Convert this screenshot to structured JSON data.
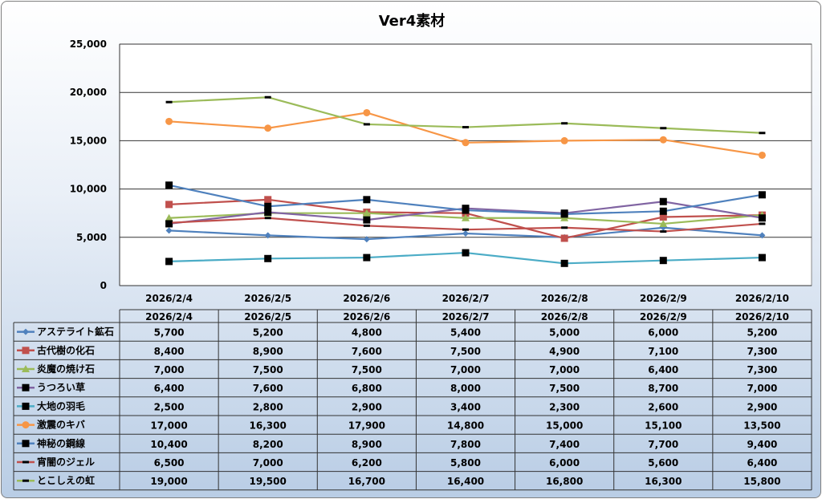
{
  "chart_data": {
    "type": "line",
    "title": "Ver4素材",
    "xlabel": "",
    "ylabel": "",
    "ylim": [
      0,
      25000
    ],
    "yticks": [
      "0",
      "5,000",
      "10,000",
      "15,000",
      "20,000",
      "25,000"
    ],
    "ytick_values": [
      0,
      5000,
      10000,
      15000,
      20000,
      25000
    ],
    "grid": true,
    "legend": "data-table",
    "categories": [
      "2026/2/4",
      "2026/2/5",
      "2026/2/6",
      "2026/2/7",
      "2026/2/8",
      "2026/2/9",
      "2026/2/10"
    ],
    "series": [
      {
        "name": "アステライト鉱石",
        "color": "#4F81BD",
        "marker": "diamond",
        "values": [
          5700,
          5200,
          4800,
          5400,
          5000,
          6000,
          5200
        ],
        "labels": [
          "5,700",
          "5,200",
          "4,800",
          "5,400",
          "5,000",
          "6,000",
          "5,200"
        ]
      },
      {
        "name": "古代樹の化石",
        "color": "#C0504D",
        "marker": "square",
        "values": [
          8400,
          8900,
          7600,
          7500,
          4900,
          7100,
          7300
        ],
        "labels": [
          "8,400",
          "8,900",
          "7,600",
          "7,500",
          "4,900",
          "7,100",
          "7,300"
        ]
      },
      {
        "name": "炎魔の焼け石",
        "color": "#9BBB59",
        "marker": "triangle",
        "values": [
          7000,
          7500,
          7500,
          7000,
          7000,
          6400,
          7300
        ],
        "labels": [
          "7,000",
          "7,500",
          "7,500",
          "7,000",
          "7,000",
          "6,400",
          "7,300"
        ]
      },
      {
        "name": "うつろい草",
        "color": "#8064A2",
        "marker": "black-square",
        "values": [
          6400,
          7600,
          6800,
          8000,
          7500,
          8700,
          7000
        ],
        "labels": [
          "6,400",
          "7,600",
          "6,800",
          "8,000",
          "7,500",
          "8,700",
          "7,000"
        ]
      },
      {
        "name": "大地の羽毛",
        "color": "#4BACC6",
        "marker": "black-square",
        "values": [
          2500,
          2800,
          2900,
          3400,
          2300,
          2600,
          2900
        ],
        "labels": [
          "2,500",
          "2,800",
          "2,900",
          "3,400",
          "2,300",
          "2,600",
          "2,900"
        ]
      },
      {
        "name": "激震のキバ",
        "color": "#F79646",
        "marker": "circle",
        "values": [
          17000,
          16300,
          17900,
          14800,
          15000,
          15100,
          13500
        ],
        "labels": [
          "17,000",
          "16,300",
          "17,900",
          "14,800",
          "15,000",
          "15,100",
          "13,500"
        ]
      },
      {
        "name": "神秘の鋼線",
        "color": "#4F81BD",
        "marker": "black-square",
        "values": [
          10400,
          8200,
          8900,
          7800,
          7400,
          7700,
          9400
        ],
        "labels": [
          "10,400",
          "8,200",
          "8,900",
          "7,800",
          "7,400",
          "7,700",
          "9,400"
        ]
      },
      {
        "name": "宵闇のジェル",
        "color": "#C0504D",
        "marker": "dash",
        "values": [
          6500,
          7000,
          6200,
          5800,
          6000,
          5600,
          6400
        ],
        "labels": [
          "6,500",
          "7,000",
          "6,200",
          "5,800",
          "6,000",
          "5,600",
          "6,400"
        ]
      },
      {
        "name": "とこしえの虹",
        "color": "#9BBB59",
        "marker": "dash",
        "values": [
          19000,
          19500,
          16700,
          16400,
          16800,
          16300,
          15800
        ],
        "labels": [
          "19,000",
          "19,500",
          "16,700",
          "16,400",
          "16,800",
          "16,300",
          "15,800"
        ]
      }
    ]
  }
}
